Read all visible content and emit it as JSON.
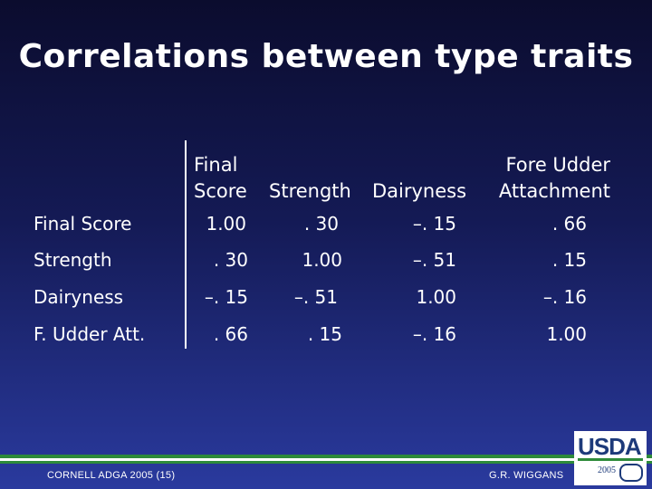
{
  "title": "Correlations between type traits",
  "table": {
    "col_headers": [
      {
        "line1": "Final",
        "line2": "Score"
      },
      {
        "line1": "",
        "line2": "Strength"
      },
      {
        "line1": "",
        "line2": "Dairyness"
      },
      {
        "line1": "Fore Udder",
        "line2": "Attachment"
      }
    ],
    "rows": [
      {
        "label": "Final Score",
        "cells": [
          "1.00",
          ". 30",
          "–. 15",
          ". 66"
        ]
      },
      {
        "label": "Strength",
        "cells": [
          ". 30",
          "1.00",
          "–. 51",
          ". 15"
        ]
      },
      {
        "label": "Dairyness",
        "cells": [
          "–. 15",
          "–. 51",
          "1.00",
          "–. 16"
        ]
      },
      {
        "label": "F. Udder Att.",
        "cells": [
          ". 66",
          ". 15",
          "–. 16",
          "1.00"
        ]
      }
    ]
  },
  "footer": {
    "left": "CORNELL ADGA 2005 (15)",
    "right": "G.R. WIGGANS"
  },
  "logo": {
    "text": "USDA",
    "year": "2005"
  },
  "colors": {
    "background_top": "#0b0c2e",
    "background_bottom": "#2a3a9e",
    "stripe_green": "#2e8b3a",
    "stripe_white": "#ffffff",
    "logo_blue": "#1d3a7a"
  }
}
